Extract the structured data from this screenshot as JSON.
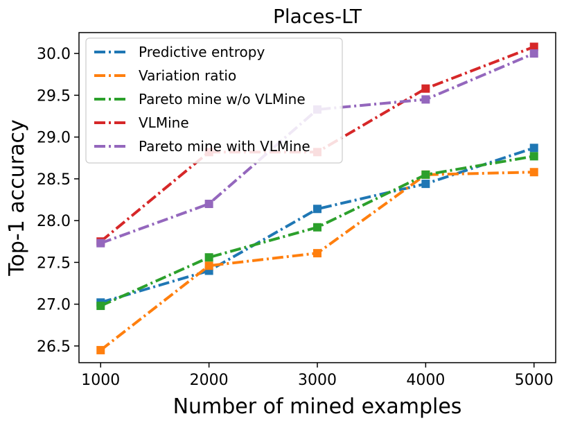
{
  "chart_data": {
    "type": "line",
    "title": "Places-LT",
    "xlabel": "Number of mined examples",
    "ylabel": "Top-1 accuracy",
    "x": [
      1000,
      2000,
      3000,
      4000,
      5000
    ],
    "xticks": [
      "1000",
      "2000",
      "3000",
      "4000",
      "5000"
    ],
    "yticks": [
      "26.5",
      "27.0",
      "27.5",
      "28.0",
      "28.5",
      "29.0",
      "29.5",
      "30.0"
    ],
    "ylim": [
      26.3,
      30.25
    ],
    "xlim": [
      800,
      5200
    ],
    "grid": false,
    "legend_position": "upper-left",
    "line_style": "dash-dot",
    "marker": "square",
    "series": [
      {
        "name": "Predictive entropy",
        "color": "#1f77b4",
        "values": [
          27.02,
          27.4,
          28.14,
          28.44,
          28.87
        ]
      },
      {
        "name": "Variation ratio",
        "color": "#ff7f0e",
        "values": [
          26.45,
          27.46,
          27.61,
          28.55,
          28.58
        ]
      },
      {
        "name": "Pareto mine w/o VLMine",
        "color": "#2ca02c",
        "values": [
          26.98,
          27.56,
          27.92,
          28.55,
          28.77
        ]
      },
      {
        "name": "VLMine",
        "color": "#d62728",
        "values": [
          27.75,
          28.82,
          28.82,
          29.58,
          30.08
        ]
      },
      {
        "name": "Pareto mine with VLMine",
        "color": "#9467bd",
        "values": [
          27.73,
          28.2,
          29.33,
          29.45,
          30.0
        ]
      }
    ]
  }
}
